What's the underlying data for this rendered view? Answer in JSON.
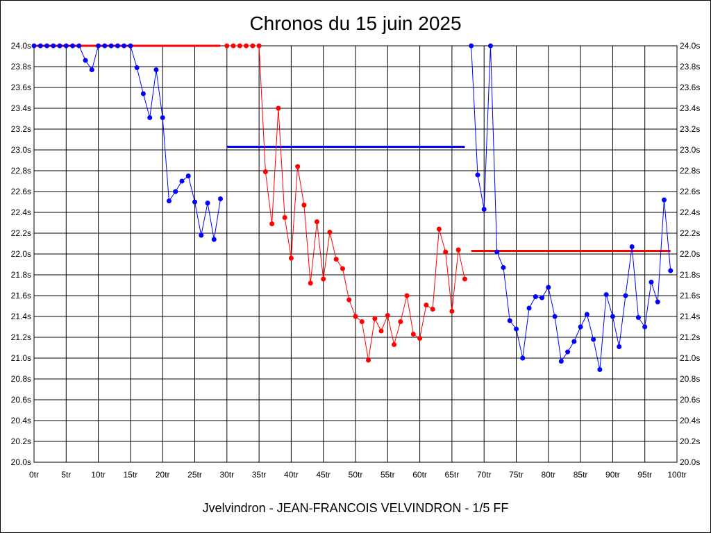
{
  "chart_data": {
    "type": "line",
    "title": "Chronos du 15 juin 2025",
    "footer": "Jvelvindron - JEAN-FRANCOIS VELVINDRON - 1/5 FF",
    "xlim": [
      0,
      100
    ],
    "ylim": [
      20.0,
      24.0
    ],
    "x_ticks": [
      0,
      5,
      10,
      15,
      20,
      25,
      30,
      35,
      40,
      45,
      50,
      55,
      60,
      65,
      70,
      75,
      80,
      85,
      90,
      95,
      100
    ],
    "x_tick_suffix": "tr",
    "y_ticks": [
      20.0,
      20.2,
      20.4,
      20.6,
      20.8,
      21.0,
      21.2,
      21.4,
      21.6,
      21.8,
      22.0,
      22.2,
      22.4,
      22.6,
      22.8,
      23.0,
      23.2,
      23.4,
      23.6,
      23.8,
      24.0
    ],
    "y_tick_suffix": "s",
    "grid": true,
    "y_axis_both_sides": true,
    "series": [
      {
        "start_lap": 0,
        "color": "#0000ff",
        "average": 24.0,
        "average_color": "#ff0000",
        "values": [
          24.0,
          24.0,
          24.0,
          24.0,
          24.0,
          24.0,
          24.0,
          24.0,
          23.86,
          23.77,
          24.0,
          24.0,
          24.0,
          24.0,
          24.0,
          24.0,
          23.79,
          23.54,
          23.31,
          23.77,
          23.31,
          22.51,
          22.6,
          22.7,
          22.75,
          22.5,
          22.18,
          22.49,
          22.14,
          22.53
        ]
      },
      {
        "start_lap": 30,
        "color": "#ff0000",
        "average": 23.03,
        "average_color": "#0000ff",
        "values": [
          24.0,
          24.0,
          24.0,
          24.0,
          24.0,
          24.0,
          22.79,
          22.29,
          23.4,
          22.35,
          21.96,
          22.84,
          22.47,
          21.72,
          22.31,
          21.76,
          22.21,
          21.95,
          21.86,
          21.56,
          21.4,
          21.35,
          20.98,
          21.38,
          21.26,
          21.41,
          21.13,
          21.35,
          21.6,
          21.23,
          21.19,
          21.51,
          21.47,
          22.24,
          22.02,
          21.45,
          22.04,
          21.76
        ]
      },
      {
        "start_lap": 68,
        "color": "#0000ff",
        "average": 22.03,
        "average_color": "#ff0000",
        "values": [
          24.0,
          22.76,
          22.43,
          24.0,
          22.02,
          21.87,
          21.36,
          21.28,
          21.0,
          21.48,
          21.59,
          21.58,
          21.68,
          21.4,
          20.97,
          21.06,
          21.16,
          21.3,
          21.42,
          21.18,
          20.89,
          21.61,
          21.4,
          21.11,
          21.6,
          22.07,
          21.39,
          21.3,
          21.73,
          21.54,
          22.52,
          21.84
        ]
      }
    ]
  }
}
